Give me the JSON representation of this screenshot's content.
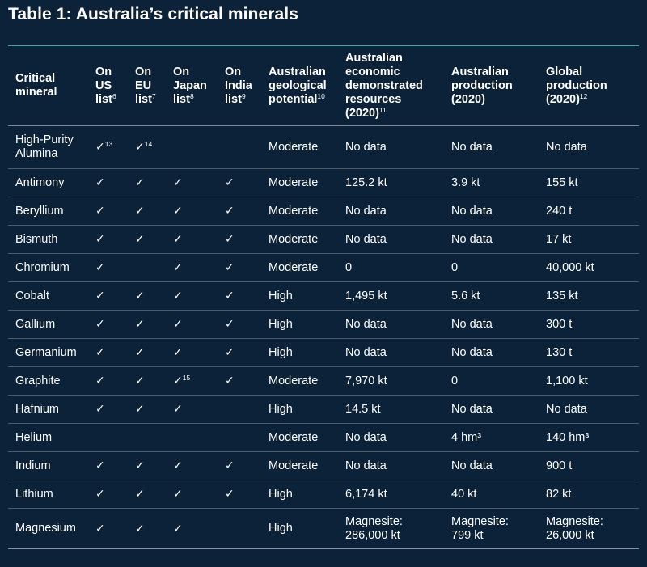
{
  "title": "Table 1: Australia’s critical minerals",
  "headers": [
    {
      "label": "Critical\nmineral",
      "sup": ""
    },
    {
      "label": "On\nUS\nlist",
      "sup": "6"
    },
    {
      "label": "On\nEU\nlist",
      "sup": "7"
    },
    {
      "label": "On\nJapan\nlist",
      "sup": "8"
    },
    {
      "label": "On\nIndia\nlist",
      "sup": "9"
    },
    {
      "label": "Australian\ngeological\npotential",
      "sup": "10"
    },
    {
      "label": "Australian\neconomic\ndemonstrated\nresources\n(2020)",
      "sup": "11"
    },
    {
      "label": "Australian\nproduction\n(2020)",
      "sup": ""
    },
    {
      "label": "Global\nproduction\n(2020)",
      "sup": "12"
    }
  ],
  "rows": [
    {
      "mineral": "High-Purity\nAlumina",
      "us": "✓",
      "us_sup": "13",
      "eu": "✓",
      "eu_sup": "14",
      "japan": "",
      "japan_sup": "",
      "india": "",
      "potential": "Moderate",
      "resources": "No data",
      "aus_prod": "No data",
      "global_prod": "No data"
    },
    {
      "mineral": "Antimony",
      "us": "✓",
      "us_sup": "",
      "eu": "✓",
      "eu_sup": "",
      "japan": "✓",
      "japan_sup": "",
      "india": "✓",
      "potential": "Moderate",
      "resources": "125.2 kt",
      "aus_prod": "3.9 kt",
      "global_prod": "155 kt"
    },
    {
      "mineral": "Beryllium",
      "us": "✓",
      "us_sup": "",
      "eu": "✓",
      "eu_sup": "",
      "japan": "✓",
      "japan_sup": "",
      "india": "✓",
      "potential": "Moderate",
      "resources": "No data",
      "aus_prod": "No data",
      "global_prod": "240 t"
    },
    {
      "mineral": "Bismuth",
      "us": "✓",
      "us_sup": "",
      "eu": "✓",
      "eu_sup": "",
      "japan": "✓",
      "japan_sup": "",
      "india": "✓",
      "potential": "Moderate",
      "resources": "No data",
      "aus_prod": "No data",
      "global_prod": "17 kt"
    },
    {
      "mineral": "Chromium",
      "us": "✓",
      "us_sup": "",
      "eu": "",
      "eu_sup": "",
      "japan": "✓",
      "japan_sup": "",
      "india": "✓",
      "potential": "Moderate",
      "resources": "0",
      "aus_prod": "0",
      "global_prod": "40,000 kt"
    },
    {
      "mineral": "Cobalt",
      "us": "✓",
      "us_sup": "",
      "eu": "✓",
      "eu_sup": "",
      "japan": "✓",
      "japan_sup": "",
      "india": "✓",
      "potential": "High",
      "resources": "1,495 kt",
      "aus_prod": "5.6 kt",
      "global_prod": "135 kt"
    },
    {
      "mineral": "Gallium",
      "us": "✓",
      "us_sup": "",
      "eu": "✓",
      "eu_sup": "",
      "japan": "✓",
      "japan_sup": "",
      "india": "✓",
      "potential": "High",
      "resources": "No data",
      "aus_prod": "No data",
      "global_prod": "300 t"
    },
    {
      "mineral": "Germanium",
      "us": "✓",
      "us_sup": "",
      "eu": "✓",
      "eu_sup": "",
      "japan": "✓",
      "japan_sup": "",
      "india": "✓",
      "potential": "High",
      "resources": "No data",
      "aus_prod": "No data",
      "global_prod": "130 t"
    },
    {
      "mineral": "Graphite",
      "us": "✓",
      "us_sup": "",
      "eu": "✓",
      "eu_sup": "",
      "japan": "✓",
      "japan_sup": "15",
      "india": "✓",
      "potential": "Moderate",
      "resources": "7,970 kt",
      "aus_prod": "0",
      "global_prod": "1,100 kt"
    },
    {
      "mineral": "Hafnium",
      "us": "✓",
      "us_sup": "",
      "eu": "✓",
      "eu_sup": "",
      "japan": "✓",
      "japan_sup": "",
      "india": "",
      "potential": "High",
      "resources": "14.5 kt",
      "aus_prod": "No data",
      "global_prod": "No data"
    },
    {
      "mineral": "Helium",
      "us": "",
      "us_sup": "",
      "eu": "",
      "eu_sup": "",
      "japan": "",
      "japan_sup": "",
      "india": "",
      "potential": "Moderate",
      "resources": "No data",
      "aus_prod": "4 hm³",
      "global_prod": "140 hm³"
    },
    {
      "mineral": "Indium",
      "us": "✓",
      "us_sup": "",
      "eu": "✓",
      "eu_sup": "",
      "japan": "✓",
      "japan_sup": "",
      "india": "✓",
      "potential": "Moderate",
      "resources": "No data",
      "aus_prod": "No data",
      "global_prod": "900 t"
    },
    {
      "mineral": "Lithium",
      "us": "✓",
      "us_sup": "",
      "eu": "✓",
      "eu_sup": "",
      "japan": "✓",
      "japan_sup": "",
      "india": "✓",
      "potential": "High",
      "resources": "6,174 kt",
      "aus_prod": "40 kt",
      "global_prod": "82 kt"
    },
    {
      "mineral": "Magnesium",
      "us": "✓",
      "us_sup": "",
      "eu": "✓",
      "eu_sup": "",
      "japan": "✓",
      "japan_sup": "",
      "india": "",
      "potential": "High",
      "resources": "Magnesite:\n286,000 kt",
      "aus_prod": "Magnesite:\n799 kt",
      "global_prod": "Magnesite:\n26,000 kt"
    }
  ]
}
